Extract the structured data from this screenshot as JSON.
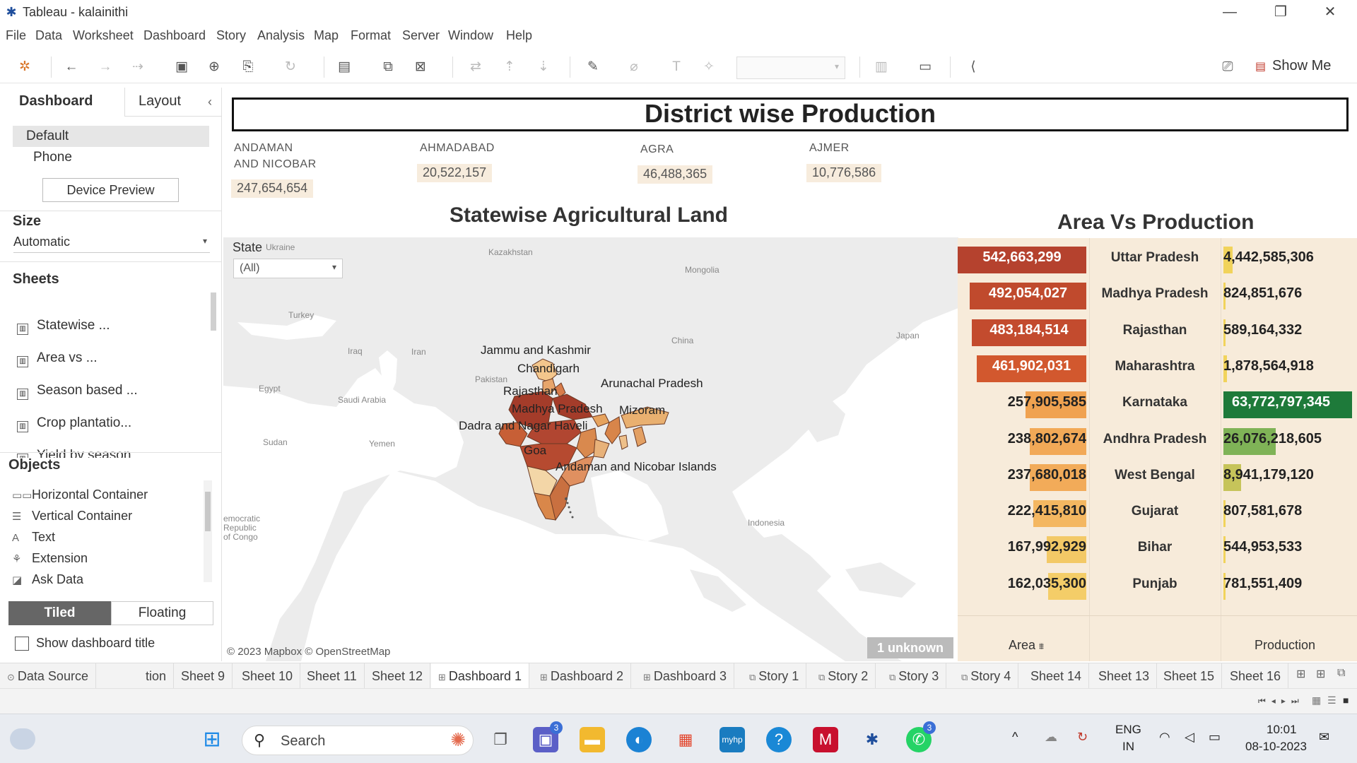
{
  "window": {
    "title": "Tableau - kalainithi",
    "controls": [
      "—",
      "❐",
      "✕"
    ]
  },
  "menu": [
    "File",
    "Data",
    "Worksheet",
    "Dashboard",
    "Story",
    "Analysis",
    "Map",
    "Format",
    "Server",
    "Window",
    "Help"
  ],
  "toolbar": {
    "show_me": "Show Me"
  },
  "left_pane": {
    "tabs": [
      "Dashboard",
      "Layout"
    ],
    "devices": [
      "Default",
      "Phone"
    ],
    "device_preview": "Device Preview",
    "size_label": "Size",
    "size_value": "Automatic",
    "sheets_label": "Sheets",
    "sheets": [
      "Statewise ...",
      "Area vs ...",
      "Season based ...",
      "Crop plantatio...",
      "Yield by season"
    ],
    "objects_label": "Objects",
    "objects": [
      "Horizontal Container",
      "Vertical Container",
      "Text",
      "Extension",
      "Ask Data"
    ],
    "tiled": "Tiled",
    "floating": "Floating",
    "show_title": "Show dashboard title"
  },
  "dashboard": {
    "title": "District wise Production",
    "kpis": [
      {
        "label_l1": "ANDAMAN",
        "label_l2": "AND NICOBAR",
        "value": "247,654,654"
      },
      {
        "label_l1": "AHMADABAD",
        "label_l2": "",
        "value": "20,522,157"
      },
      {
        "label_l1": "AGRA",
        "label_l2": "",
        "value": "46,488,365"
      },
      {
        "label_l1": "AJMER",
        "label_l2": "",
        "value": "10,776,586"
      }
    ],
    "map": {
      "title": "Statewise Agricultural Land",
      "filter_label": "State",
      "filter_value": "(All)",
      "copyright": "© 2023 Mapbox © OpenStreetMap",
      "unknown": "1 unknown",
      "countries": [
        "Ukraine",
        "Kazakhstan",
        "Mongolia",
        "Turkey",
        "China",
        "Japan",
        "Iraq",
        "Iran",
        "Pakistan",
        "Egypt",
        "Saudi Arabia",
        "Sudan",
        "Yemen",
        "Indonesia",
        "emocratic",
        "Republic",
        "of Congo"
      ],
      "state_labels": [
        "Jammu and Kashmir",
        "Chandigarh",
        "Arunachal Pradesh",
        "Rajasthan",
        "Madhya Pradesh",
        "Mizoram",
        "Dadra and Nagar Haveli",
        "Goa",
        "Andaman and Nicobar Islands"
      ]
    },
    "area_vs_production": {
      "title": "Area Vs Production",
      "area_axis": "Area",
      "production_axis": "Production",
      "rows": [
        {
          "state": "Uttar Pradesh",
          "area": "542,663,299",
          "production": "4,442,585,306",
          "area_frac": 1.0,
          "prod_frac": 0.07,
          "area_color": "#b5422e",
          "prod_color": "#f1d35b"
        },
        {
          "state": "Madhya Pradesh",
          "area": "492,054,027",
          "production": "824,851,676",
          "area_frac": 0.907,
          "prod_frac": 0.013,
          "area_color": "#c04a2d",
          "prod_color": "#f1d35b"
        },
        {
          "state": "Rajasthan",
          "area": "483,184,514",
          "production": "589,164,332",
          "area_frac": 0.89,
          "prod_frac": 0.009,
          "area_color": "#c34b2e",
          "prod_color": "#f1d35b"
        },
        {
          "state": "Maharashtra",
          "area": "461,902,031",
          "production": "1,878,564,918",
          "area_frac": 0.851,
          "prod_frac": 0.03,
          "area_color": "#d2582e",
          "prod_color": "#f1d35b"
        },
        {
          "state": "Karnataka",
          "area": "257,905,585",
          "production": "63,772,797,345",
          "area_frac": 0.475,
          "prod_frac": 1.0,
          "area_color": "#f0a250",
          "prod_color": "#1e7a3a"
        },
        {
          "state": "Andhra Pradesh",
          "area": "238,802,674",
          "production": "26,076,218,605",
          "area_frac": 0.44,
          "prod_frac": 0.409,
          "area_color": "#f2a957",
          "prod_color": "#7fb357"
        },
        {
          "state": "West Bengal",
          "area": "237,680,018",
          "production": "8,941,179,120",
          "area_frac": 0.438,
          "prod_frac": 0.14,
          "area_color": "#f2ab59",
          "prod_color": "#c6c45a"
        },
        {
          "state": "Gujarat",
          "area": "222,415,810",
          "production": "807,581,678",
          "area_frac": 0.41,
          "prod_frac": 0.013,
          "area_color": "#f4b761",
          "prod_color": "#f1d35b"
        },
        {
          "state": "Bihar",
          "area": "167,992,929",
          "production": "544,953,533",
          "area_frac": 0.31,
          "prod_frac": 0.009,
          "area_color": "#f3c966",
          "prod_color": "#f1d35b"
        },
        {
          "state": "Punjab",
          "area": "162,035,300",
          "production": "781,551,409",
          "area_frac": 0.299,
          "prod_frac": 0.012,
          "area_color": "#f4cd68",
          "prod_color": "#f1d35b"
        }
      ]
    }
  },
  "sheet_tabs": [
    {
      "label": "Data Source",
      "icon": "⊙"
    },
    {
      "label": "tion",
      "icon": ""
    },
    {
      "label": "Sheet 9",
      "icon": ""
    },
    {
      "label": "Sheet 10",
      "icon": ""
    },
    {
      "label": "Sheet 11",
      "icon": ""
    },
    {
      "label": "Sheet 12",
      "icon": ""
    },
    {
      "label": "Dashboard 1",
      "icon": "⊞"
    },
    {
      "label": "Dashboard 2",
      "icon": "⊞"
    },
    {
      "label": "Dashboard 3",
      "icon": "⊞"
    },
    {
      "label": "Story 1",
      "icon": "⧉"
    },
    {
      "label": "Story 2",
      "icon": "⧉"
    },
    {
      "label": "Story 3",
      "icon": "⧉"
    },
    {
      "label": "Story 4",
      "icon": "⧉"
    },
    {
      "label": "Sheet 14",
      "icon": ""
    },
    {
      "label": "Sheet 13",
      "icon": ""
    },
    {
      "label": "Sheet 15",
      "icon": ""
    },
    {
      "label": "Sheet 16",
      "icon": ""
    }
  ],
  "taskbar": {
    "search": "Search",
    "lang_l1": "ENG",
    "lang_l2": "IN",
    "time": "10:01",
    "date": "08-10-2023",
    "teams_badge": "3",
    "whatsapp_badge": "3"
  }
}
